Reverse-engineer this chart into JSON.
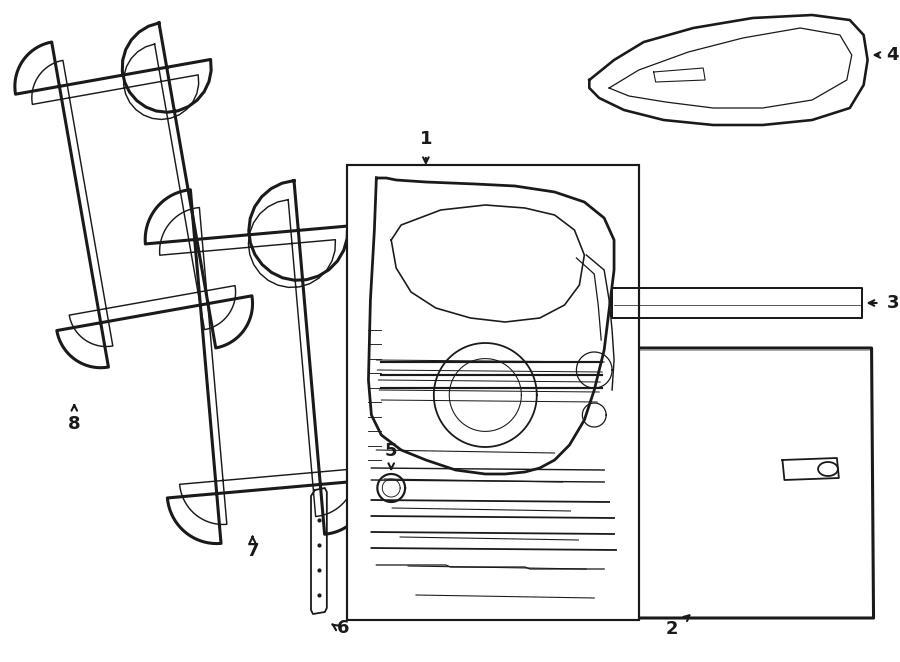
{
  "bg_color": "#ffffff",
  "line_color": "#1a1a1a",
  "lw": 1.3,
  "hlw": 2.2,
  "fs": 13,
  "fig_w": 9.0,
  "fig_h": 6.62,
  "dpi": 100
}
